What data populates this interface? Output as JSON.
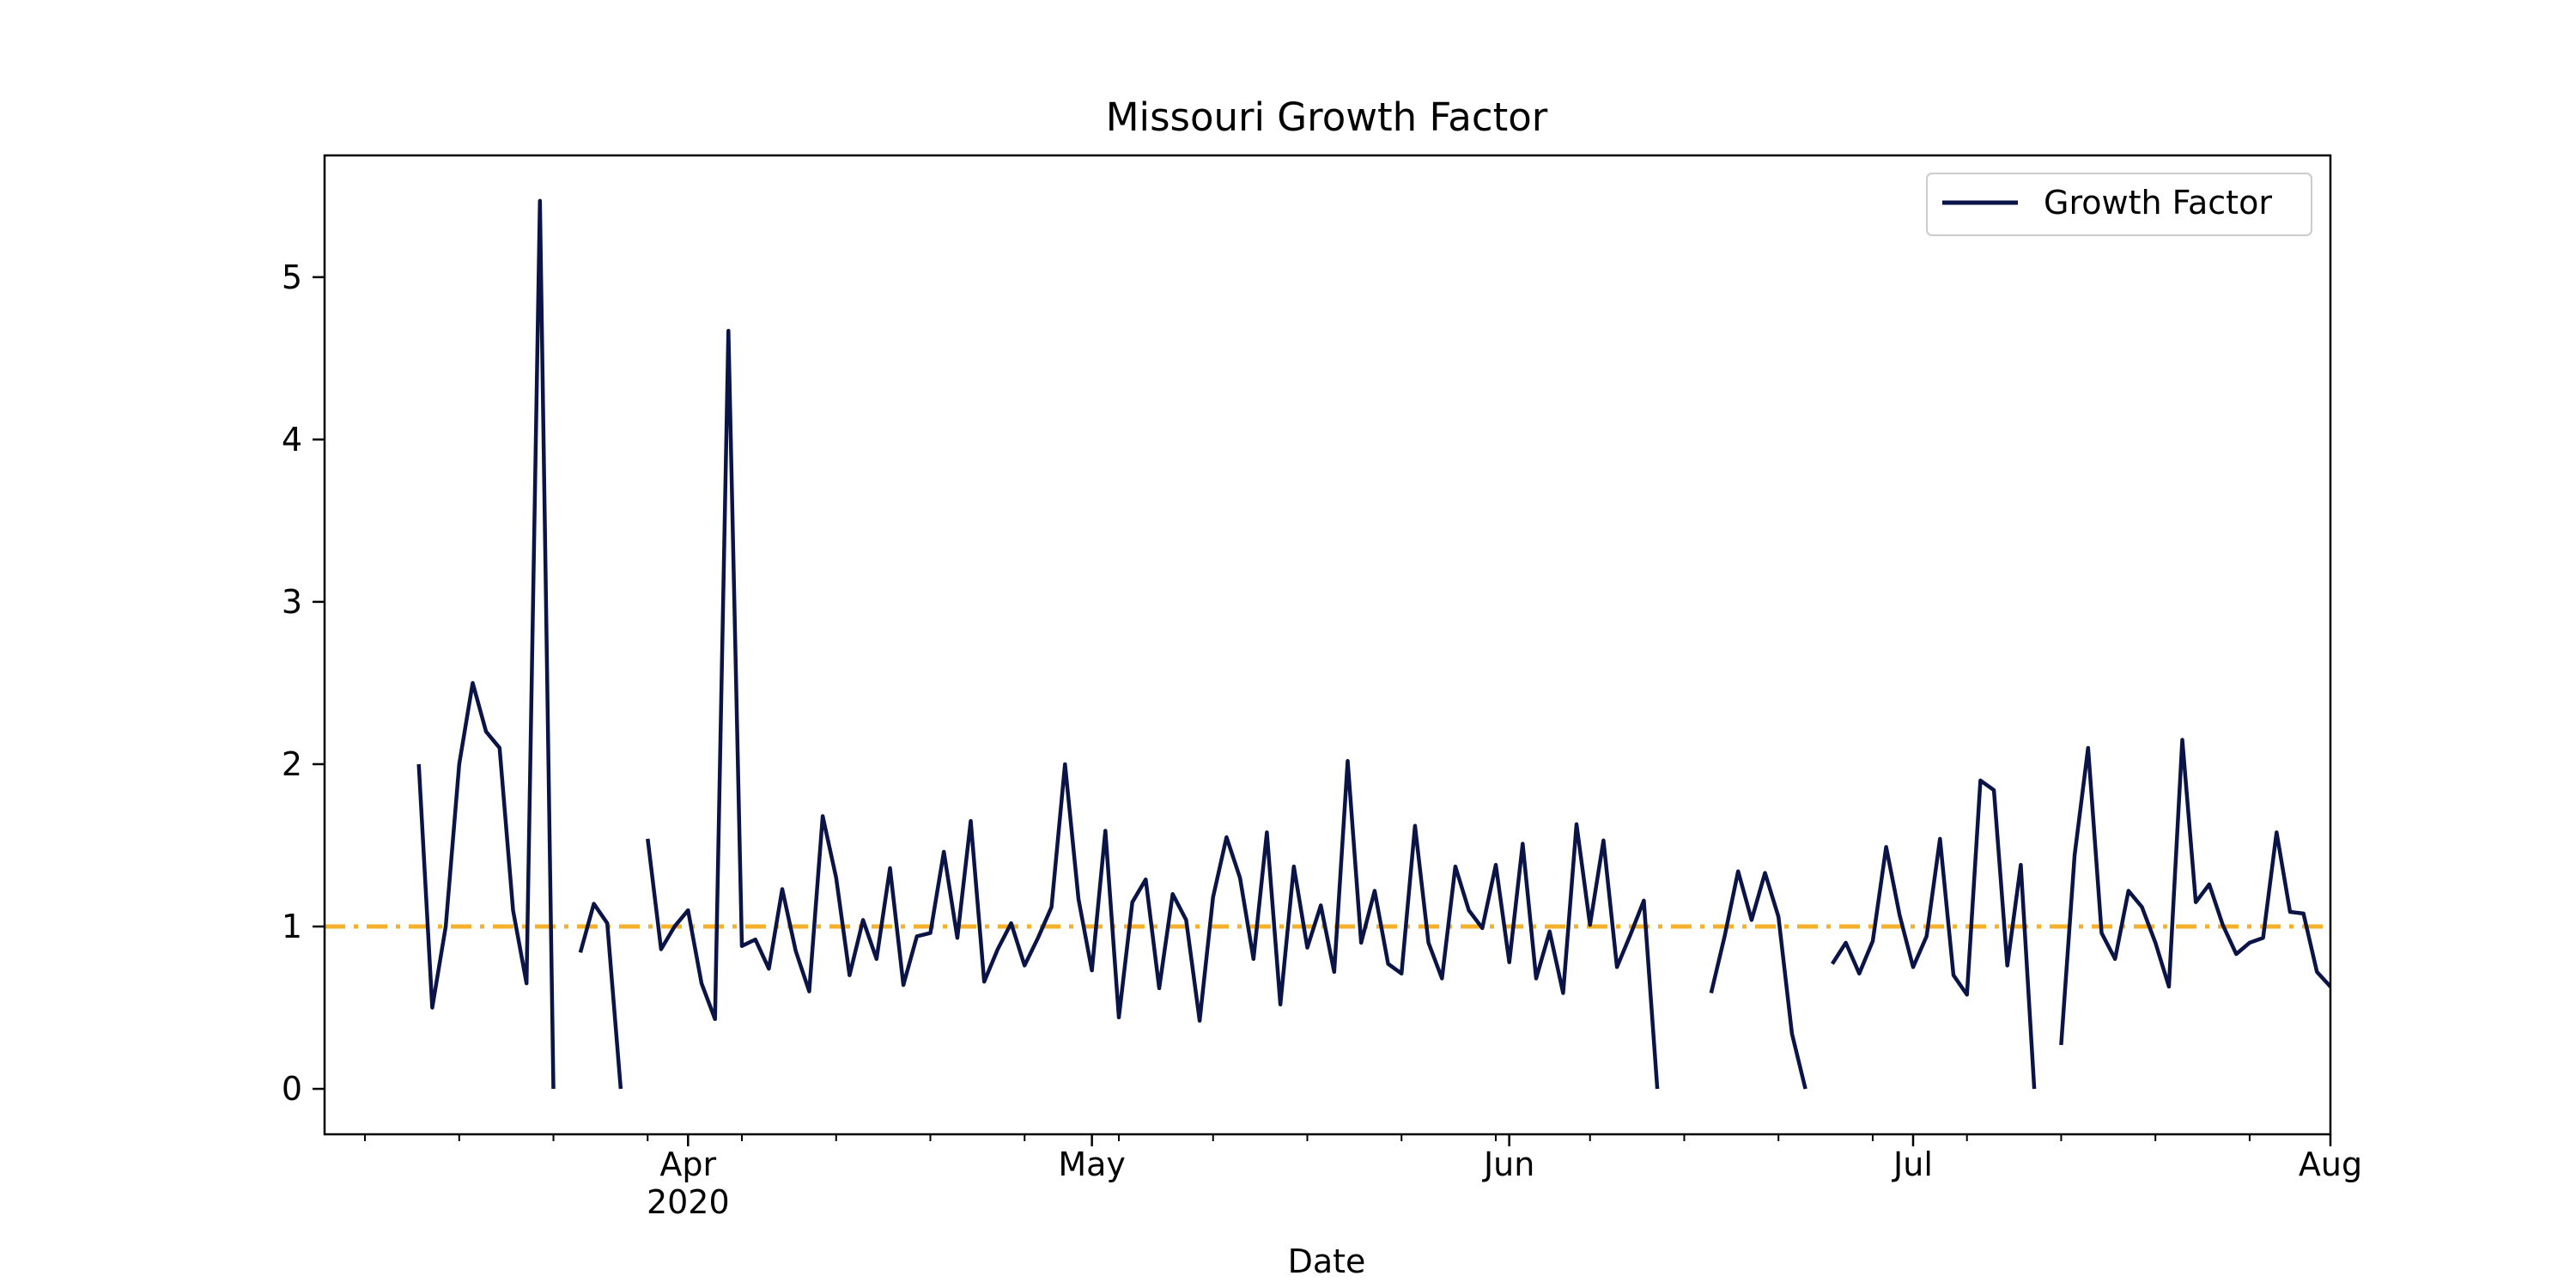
{
  "chart_data": {
    "type": "line",
    "title": "Missouri Growth Factor",
    "xlabel": "Date",
    "ylabel": "",
    "xlim": [
      "2020-03-05",
      "2020-08-01"
    ],
    "ylim": [
      -0.28,
      5.75
    ],
    "x_tick_labels": [
      {
        "date": "2020-04-01",
        "label": "Apr",
        "sublabel": "2020"
      },
      {
        "date": "2020-05-01",
        "label": "May",
        "sublabel": ""
      },
      {
        "date": "2020-06-01",
        "label": "Jun",
        "sublabel": ""
      },
      {
        "date": "2020-07-01",
        "label": "Jul",
        "sublabel": ""
      },
      {
        "date": "2020-08-01",
        "label": "Aug",
        "sublabel": ""
      }
    ],
    "x_minor_ticks": [
      "2020-03-08",
      "2020-03-15",
      "2020-03-22",
      "2020-03-29",
      "2020-04-05",
      "2020-04-12",
      "2020-04-19",
      "2020-04-26",
      "2020-05-03",
      "2020-05-10",
      "2020-05-17",
      "2020-05-24",
      "2020-05-31",
      "2020-06-07",
      "2020-06-14",
      "2020-06-21",
      "2020-06-28",
      "2020-07-05",
      "2020-07-12",
      "2020-07-19",
      "2020-07-26"
    ],
    "y_ticks": [
      0,
      1,
      2,
      3,
      4,
      5
    ],
    "reference_line": {
      "y": 1,
      "color": "#f5b02c",
      "style": "dash-dot"
    },
    "legend": {
      "position": "top-right",
      "entries": [
        "Growth Factor"
      ]
    },
    "grid": false,
    "series": [
      {
        "name": "Growth Factor",
        "color": "#0b1446",
        "points": [
          [
            "2020-03-12",
            2.0
          ],
          [
            "2020-03-13",
            0.5
          ],
          [
            "2020-03-14",
            1.0
          ],
          [
            "2020-03-15",
            2.0
          ],
          [
            "2020-03-16",
            2.5
          ],
          [
            "2020-03-17",
            2.2
          ],
          [
            "2020-03-18",
            2.1
          ],
          [
            "2020-03-19",
            1.1
          ],
          [
            "2020-03-20",
            0.65
          ],
          [
            "2020-03-21",
            5.47
          ],
          [
            "2020-03-22",
            0.0
          ],
          [
            "2020-03-23",
            null
          ],
          [
            "2020-03-24",
            0.84
          ],
          [
            "2020-03-25",
            1.14
          ],
          [
            "2020-03-26",
            1.02
          ],
          [
            "2020-03-27",
            0.0
          ],
          [
            "2020-03-28",
            null
          ],
          [
            "2020-03-29",
            1.54
          ],
          [
            "2020-03-30",
            0.86
          ],
          [
            "2020-03-31",
            1.0
          ],
          [
            "2020-04-01",
            1.1
          ],
          [
            "2020-04-02",
            0.65
          ],
          [
            "2020-04-03",
            0.43
          ],
          [
            "2020-04-04",
            4.67
          ],
          [
            "2020-04-05",
            0.88
          ],
          [
            "2020-04-06",
            0.92
          ],
          [
            "2020-04-07",
            0.74
          ],
          [
            "2020-04-08",
            1.23
          ],
          [
            "2020-04-09",
            0.85
          ],
          [
            "2020-04-10",
            0.6
          ],
          [
            "2020-04-11",
            1.68
          ],
          [
            "2020-04-12",
            1.3
          ],
          [
            "2020-04-13",
            0.7
          ],
          [
            "2020-04-14",
            1.04
          ],
          [
            "2020-04-15",
            0.8
          ],
          [
            "2020-04-16",
            1.36
          ],
          [
            "2020-04-17",
            0.64
          ],
          [
            "2020-04-18",
            0.94
          ],
          [
            "2020-04-19",
            0.96
          ],
          [
            "2020-04-20",
            1.46
          ],
          [
            "2020-04-21",
            0.93
          ],
          [
            "2020-04-22",
            1.65
          ],
          [
            "2020-04-23",
            0.66
          ],
          [
            "2020-04-24",
            0.86
          ],
          [
            "2020-04-25",
            1.02
          ],
          [
            "2020-04-26",
            0.76
          ],
          [
            "2020-04-27",
            0.93
          ],
          [
            "2020-04-28",
            1.12
          ],
          [
            "2020-04-29",
            2.0
          ],
          [
            "2020-04-30",
            1.17
          ],
          [
            "2020-05-01",
            0.73
          ],
          [
            "2020-05-02",
            1.59
          ],
          [
            "2020-05-03",
            0.44
          ],
          [
            "2020-05-04",
            1.15
          ],
          [
            "2020-05-05",
            1.29
          ],
          [
            "2020-05-06",
            0.62
          ],
          [
            "2020-05-07",
            1.2
          ],
          [
            "2020-05-08",
            1.04
          ],
          [
            "2020-05-09",
            0.42
          ],
          [
            "2020-05-10",
            1.18
          ],
          [
            "2020-05-11",
            1.55
          ],
          [
            "2020-05-12",
            1.3
          ],
          [
            "2020-05-13",
            0.8
          ],
          [
            "2020-05-14",
            1.58
          ],
          [
            "2020-05-15",
            0.52
          ],
          [
            "2020-05-16",
            1.37
          ],
          [
            "2020-05-17",
            0.87
          ],
          [
            "2020-05-18",
            1.13
          ],
          [
            "2020-05-19",
            0.72
          ],
          [
            "2020-05-20",
            2.02
          ],
          [
            "2020-05-21",
            0.9
          ],
          [
            "2020-05-22",
            1.22
          ],
          [
            "2020-05-23",
            0.77
          ],
          [
            "2020-05-24",
            0.71
          ],
          [
            "2020-05-25",
            1.62
          ],
          [
            "2020-05-26",
            0.9
          ],
          [
            "2020-05-27",
            0.68
          ],
          [
            "2020-05-28",
            1.37
          ],
          [
            "2020-05-29",
            1.1
          ],
          [
            "2020-05-30",
            0.99
          ],
          [
            "2020-05-31",
            1.38
          ],
          [
            "2020-06-01",
            0.78
          ],
          [
            "2020-06-02",
            1.51
          ],
          [
            "2020-06-03",
            0.68
          ],
          [
            "2020-06-04",
            0.97
          ],
          [
            "2020-06-05",
            0.59
          ],
          [
            "2020-06-06",
            1.63
          ],
          [
            "2020-06-07",
            1.01
          ],
          [
            "2020-06-08",
            1.53
          ],
          [
            "2020-06-09",
            0.75
          ],
          [
            "2020-06-10",
            0.95
          ],
          [
            "2020-06-11",
            1.16
          ],
          [
            "2020-06-12",
            0.0
          ],
          [
            "2020-06-13",
            null
          ],
          [
            "2020-06-16",
            0.59
          ],
          [
            "2020-06-17",
            0.94
          ],
          [
            "2020-06-18",
            1.34
          ],
          [
            "2020-06-19",
            1.04
          ],
          [
            "2020-06-20",
            1.33
          ],
          [
            "2020-06-21",
            1.06
          ],
          [
            "2020-06-22",
            0.34
          ],
          [
            "2020-06-23",
            0.0
          ],
          [
            "2020-06-24",
            null
          ],
          [
            "2020-06-25",
            0.77
          ],
          [
            "2020-06-26",
            0.9
          ],
          [
            "2020-06-27",
            0.71
          ],
          [
            "2020-06-28",
            0.91
          ],
          [
            "2020-06-29",
            1.49
          ],
          [
            "2020-06-30",
            1.07
          ],
          [
            "2020-07-01",
            0.75
          ],
          [
            "2020-07-02",
            0.94
          ],
          [
            "2020-07-03",
            1.54
          ],
          [
            "2020-07-04",
            0.7
          ],
          [
            "2020-07-05",
            0.58
          ],
          [
            "2020-07-06",
            1.9
          ],
          [
            "2020-07-07",
            1.84
          ],
          [
            "2020-07-08",
            0.76
          ],
          [
            "2020-07-09",
            1.38
          ],
          [
            "2020-07-10",
            0.0
          ],
          [
            "2020-07-11",
            null
          ],
          [
            "2020-07-12",
            0.27
          ],
          [
            "2020-07-13",
            1.44
          ],
          [
            "2020-07-14",
            2.1
          ],
          [
            "2020-07-15",
            0.96
          ],
          [
            "2020-07-16",
            0.8
          ],
          [
            "2020-07-17",
            1.22
          ],
          [
            "2020-07-18",
            1.12
          ],
          [
            "2020-07-19",
            0.9
          ],
          [
            "2020-07-20",
            0.63
          ],
          [
            "2020-07-21",
            2.15
          ],
          [
            "2020-07-22",
            1.15
          ],
          [
            "2020-07-23",
            1.26
          ],
          [
            "2020-07-24",
            1.01
          ],
          [
            "2020-07-25",
            0.83
          ],
          [
            "2020-07-26",
            0.9
          ],
          [
            "2020-07-27",
            0.93
          ],
          [
            "2020-07-28",
            1.58
          ],
          [
            "2020-07-29",
            1.09
          ],
          [
            "2020-07-30",
            1.08
          ],
          [
            "2020-07-31",
            0.72
          ],
          [
            "2020-08-01",
            0.63
          ],
          [
            "2020-08-02",
            0.62
          ]
        ]
      }
    ]
  }
}
